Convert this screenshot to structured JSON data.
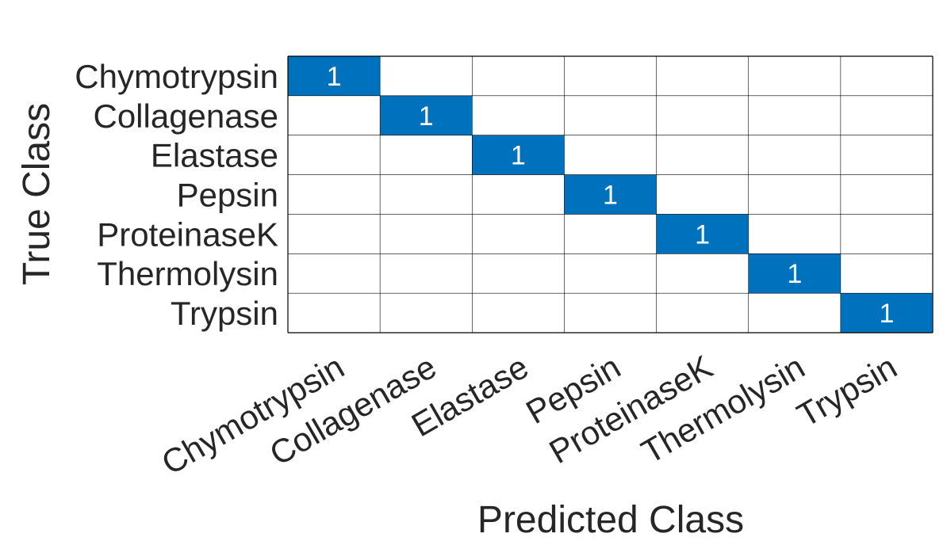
{
  "chart_data": {
    "type": "heatmap",
    "title": "",
    "xlabel": "Predicted Class",
    "ylabel": "True Class",
    "rows": [
      "Chymotrypsin",
      "Collagenase",
      "Elastase",
      "Pepsin",
      "ProteinaseK",
      "Thermolysin",
      "Trypsin"
    ],
    "columns": [
      "Chymotrypsin",
      "Collagenase",
      "Elastase",
      "Pepsin",
      "ProteinaseK",
      "Thermolysin",
      "Trypsin"
    ],
    "values": [
      [
        1,
        0,
        0,
        0,
        0,
        0,
        0
      ],
      [
        0,
        1,
        0,
        0,
        0,
        0,
        0
      ],
      [
        0,
        0,
        1,
        0,
        0,
        0,
        0
      ],
      [
        0,
        0,
        0,
        1,
        0,
        0,
        0
      ],
      [
        0,
        0,
        0,
        0,
        1,
        0,
        0
      ],
      [
        0,
        0,
        0,
        0,
        0,
        1,
        0
      ],
      [
        0,
        0,
        0,
        0,
        0,
        0,
        1
      ]
    ],
    "show_zero_values": false,
    "colors": {
      "filled_cell": "#0072BD",
      "empty_cell": "#FFFFFF",
      "grid_line": "#000000",
      "cell_text": "#FFFFFF",
      "label_text": "#262626"
    }
  }
}
